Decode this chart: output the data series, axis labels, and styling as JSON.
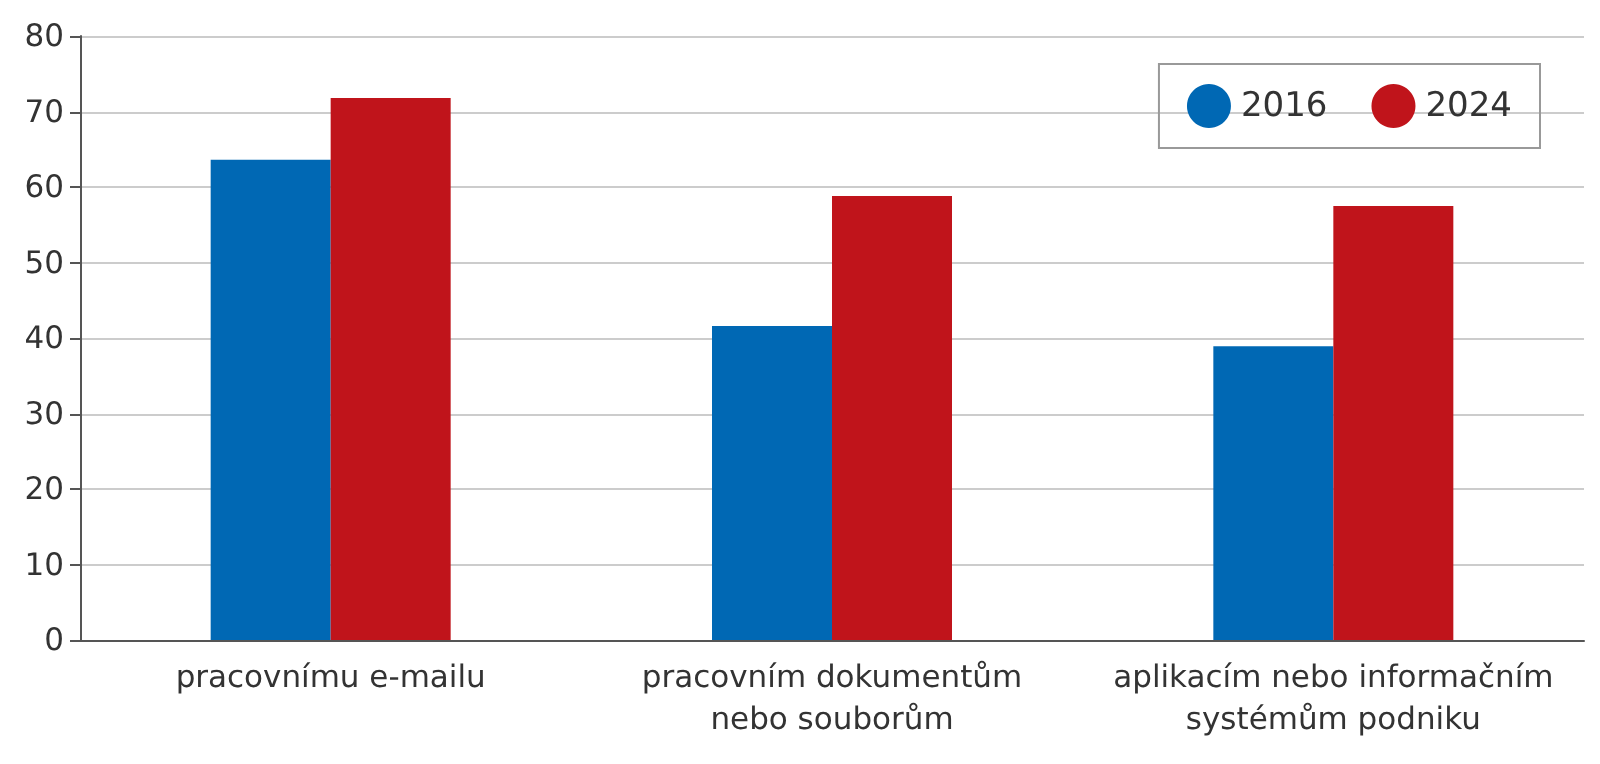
{
  "chart_data": {
    "type": "bar",
    "categories": [
      "pracovnímu e-mailu",
      "pracovním dokumentům\nnebo souborům",
      "aplikacím nebo informačním\nsystémům podniku"
    ],
    "series": [
      {
        "name": "2016",
        "color": "#0068b4",
        "values": [
          63.6,
          41.6,
          38.9
        ]
      },
      {
        "name": "2024",
        "color": "#c0141b",
        "values": [
          71.8,
          58.8,
          57.5
        ]
      }
    ],
    "ylim": [
      0,
      80
    ],
    "yticks": [
      0,
      10,
      20,
      30,
      40,
      50,
      60,
      70,
      80
    ],
    "grid": "y",
    "legend": "top right"
  }
}
